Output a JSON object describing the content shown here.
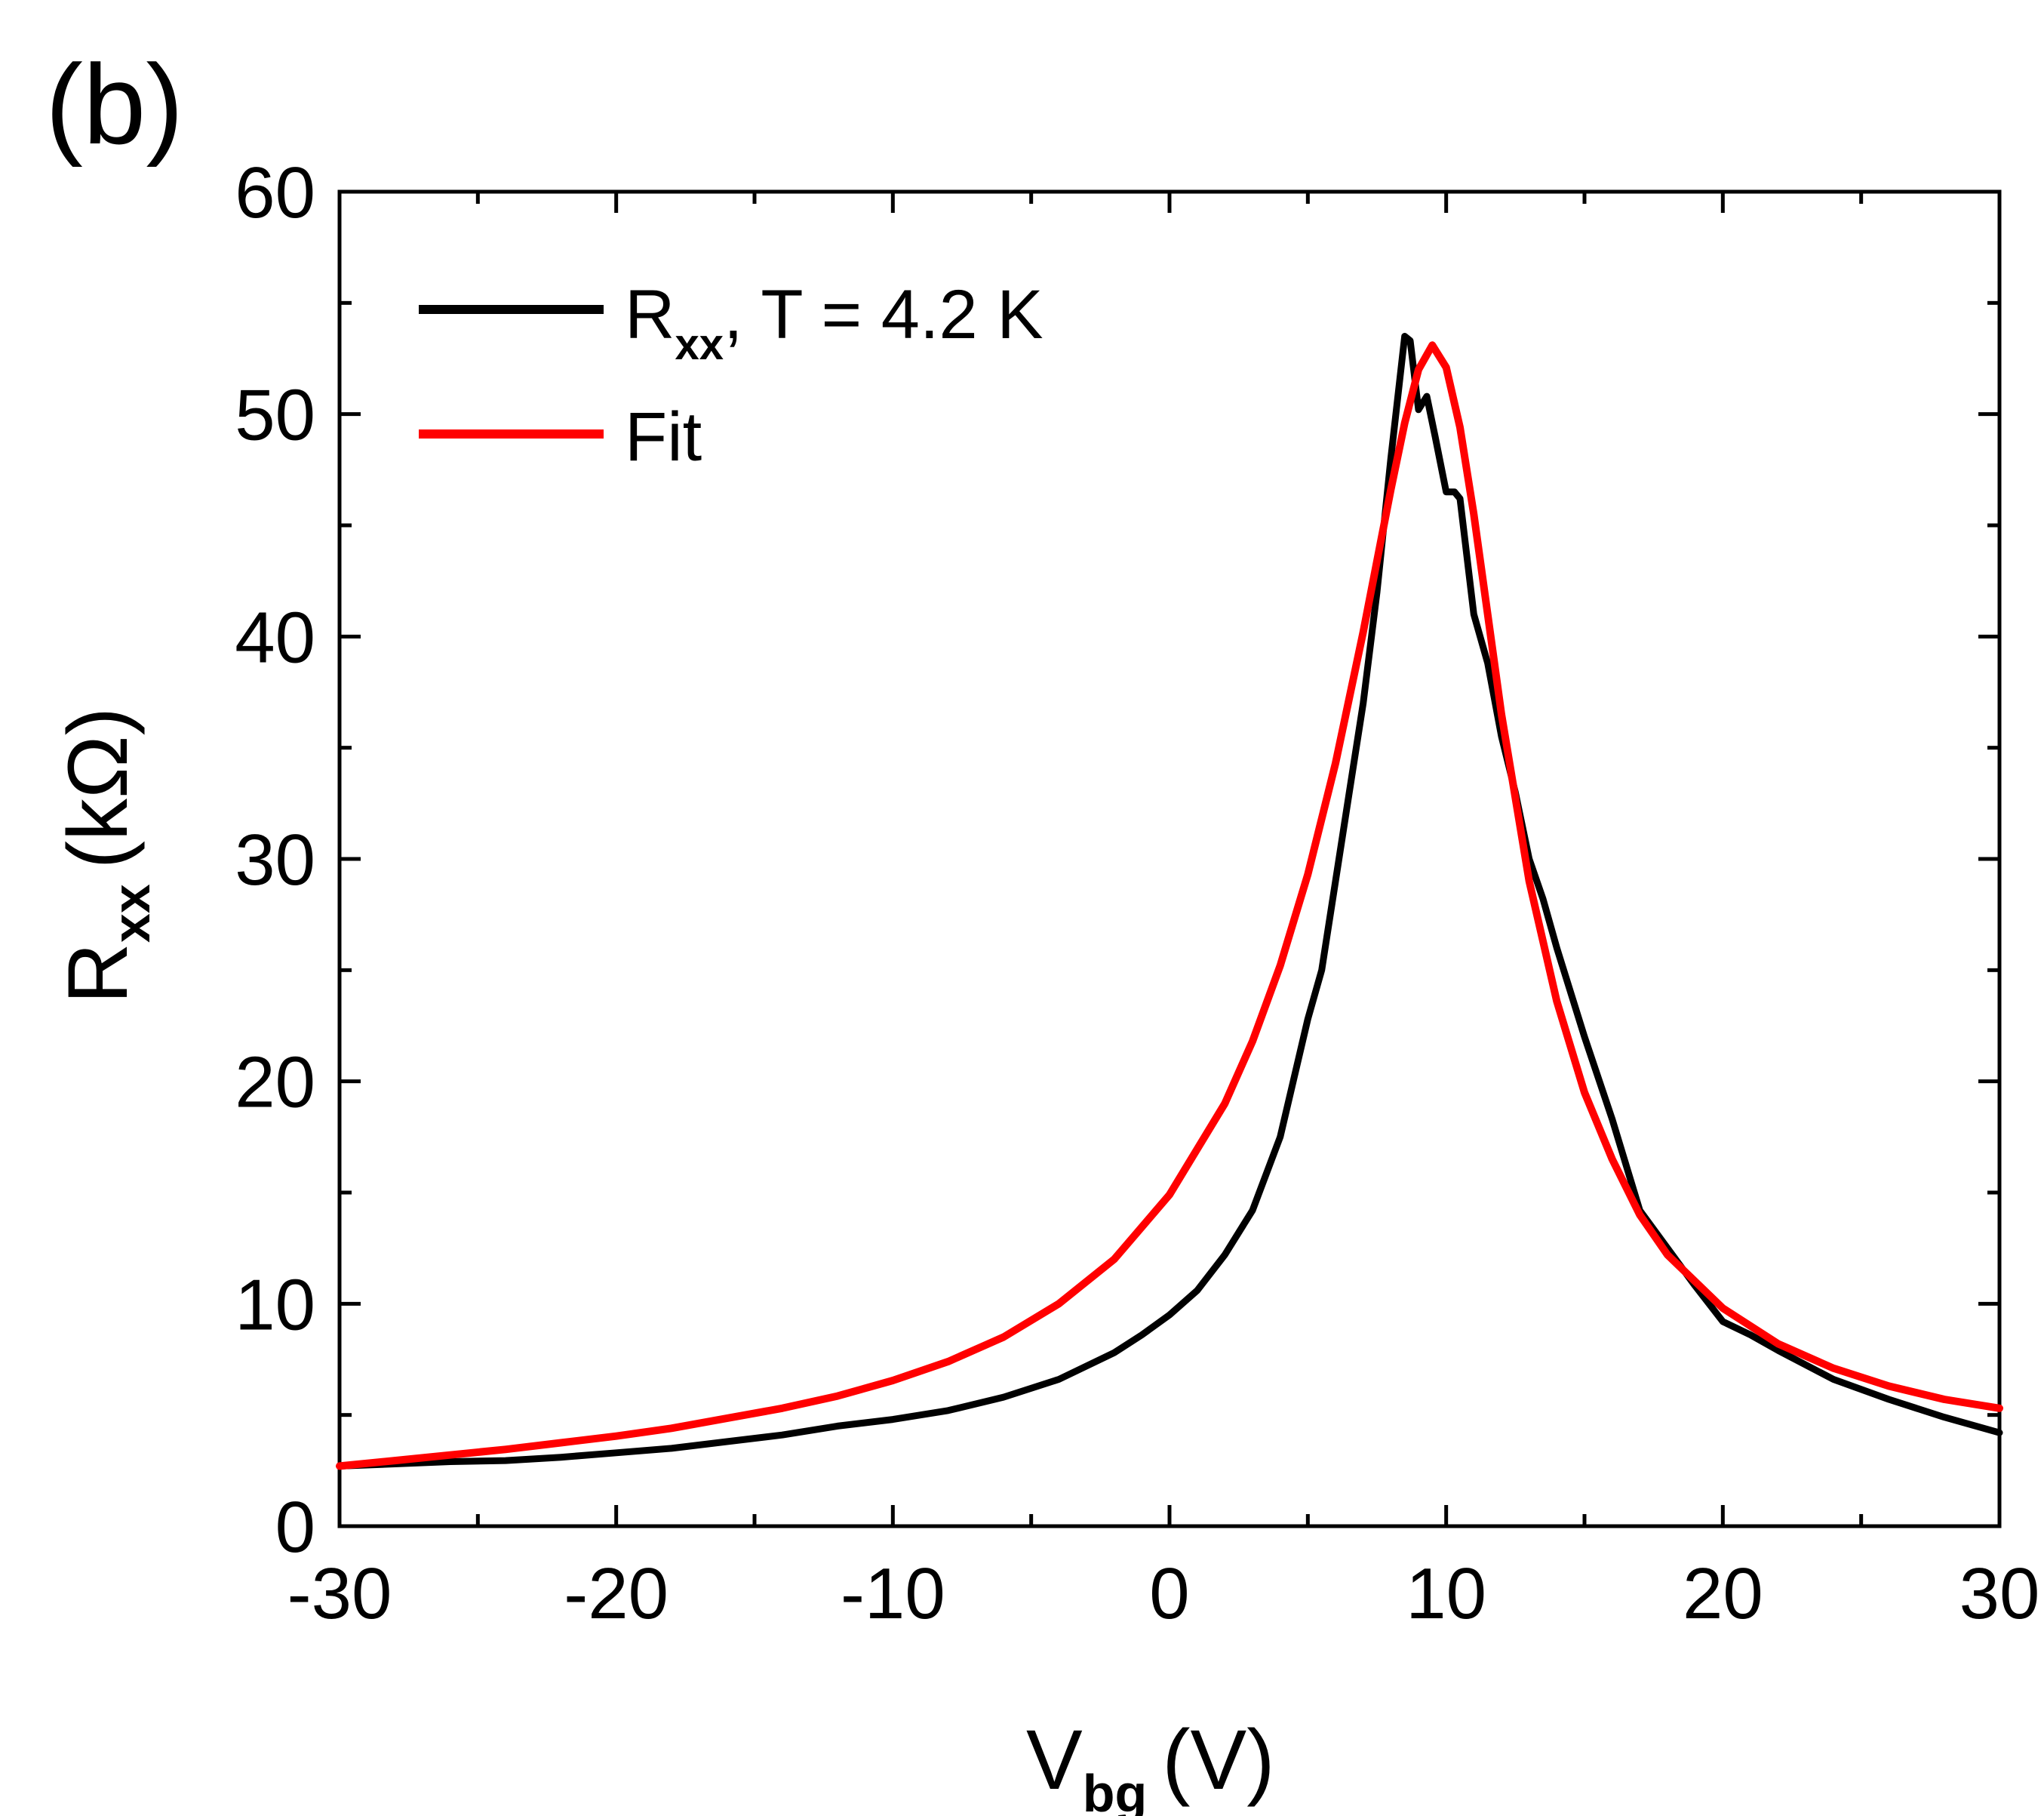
{
  "panel_label": "(b)",
  "colors": {
    "measured": "#000000",
    "fit": "#ff0000",
    "axis": "#000000"
  },
  "chart_data": {
    "type": "line",
    "title": "",
    "xlabel": "V",
    "xlabel_sub": "bg",
    "xlabel_unit": "(V)",
    "ylabel": "R",
    "ylabel_sub": "xx",
    "ylabel_unit": "(kΩ)",
    "xlim": [
      -30,
      30
    ],
    "ylim": [
      0,
      60
    ],
    "x_ticks": [
      -30,
      -20,
      -10,
      0,
      10,
      20,
      30
    ],
    "x_tick_labels": [
      "-30",
      "-20",
      "-10",
      "0",
      "10",
      "20",
      "30"
    ],
    "x_minor_ticks": [
      -25,
      -15,
      -5,
      5,
      15,
      25
    ],
    "y_ticks": [
      0,
      10,
      20,
      30,
      40,
      50,
      60
    ],
    "y_tick_labels": [
      "0",
      "10",
      "20",
      "30",
      "40",
      "50",
      "60"
    ],
    "y_minor_ticks": [
      5,
      15,
      25,
      35,
      45,
      55
    ],
    "legend_position": "top-left",
    "series": [
      {
        "name": "Rxx, T = 4.2 K",
        "legend_main": "R",
        "legend_sub": "xx",
        "legend_rest": ", T = 4.2 K",
        "color": "#000000",
        "x": [
          -30,
          -28,
          -26,
          -24,
          -22,
          -20,
          -18,
          -16,
          -14,
          -12,
          -10,
          -8,
          -6,
          -4,
          -2,
          -1,
          0,
          1,
          2,
          3,
          4,
          5,
          5.5,
          6,
          6.5,
          7,
          7.5,
          8,
          8.5,
          8.7,
          9,
          9.3,
          9.6,
          10,
          10.3,
          10.5,
          11,
          11.5,
          12,
          12.5,
          13,
          13.5,
          14,
          15,
          16,
          17,
          18,
          19,
          20,
          21,
          22,
          24,
          26,
          28,
          30
        ],
        "y": [
          2.7,
          2.8,
          2.9,
          2.95,
          3.1,
          3.3,
          3.5,
          3.8,
          4.1,
          4.5,
          4.8,
          5.2,
          5.8,
          6.6,
          7.8,
          8.6,
          9.5,
          10.6,
          12.2,
          14.2,
          17.5,
          22.8,
          25,
          29,
          33,
          37,
          42,
          48,
          53.5,
          53.3,
          50.2,
          50.8,
          49,
          46.5,
          46.5,
          46.2,
          41,
          38.8,
          35.5,
          33,
          30,
          28.2,
          26,
          22,
          18.3,
          14.2,
          12.5,
          10.8,
          9.2,
          8.6,
          7.9,
          6.6,
          5.7,
          4.9,
          4.2
        ]
      },
      {
        "name": "Fit",
        "legend_main": "Fit",
        "color": "#ff0000",
        "x": [
          -30,
          -28,
          -26,
          -24,
          -22,
          -20,
          -18,
          -16,
          -14,
          -12,
          -10,
          -8,
          -6,
          -4,
          -2,
          0,
          2,
          3,
          4,
          5,
          6,
          7,
          7.5,
          8,
          8.5,
          9,
          9.5,
          10,
          10.5,
          11,
          11.5,
          12,
          13,
          14,
          15,
          16,
          17,
          18,
          20,
          22,
          24,
          26,
          28,
          30
        ],
        "y": [
          2.7,
          2.95,
          3.2,
          3.45,
          3.75,
          4.05,
          4.4,
          4.85,
          5.3,
          5.85,
          6.55,
          7.4,
          8.5,
          10,
          12,
          14.9,
          19,
          21.8,
          25.2,
          29.3,
          34.3,
          40.2,
          43.4,
          46.6,
          49.6,
          52,
          53.1,
          52.1,
          49.4,
          45.5,
          41,
          36.5,
          29,
          23.6,
          19.5,
          16.5,
          14,
          12.2,
          9.8,
          8.2,
          7.1,
          6.3,
          5.7,
          5.3
        ]
      }
    ]
  }
}
